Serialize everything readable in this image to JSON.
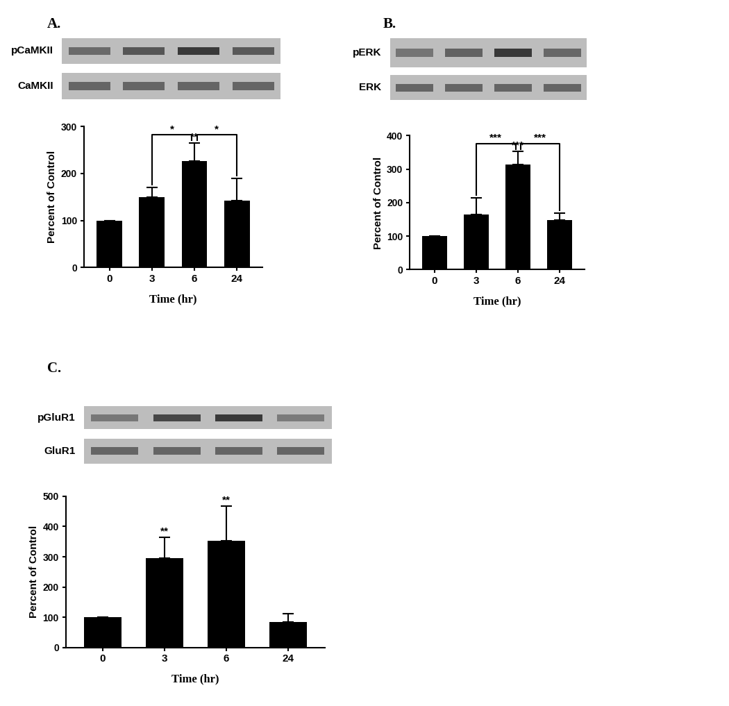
{
  "chart_data": [
    {
      "type": "bar",
      "panel_label": "A.",
      "blot_labels": [
        "pCaMKII",
        "CaMKII"
      ],
      "categories": [
        "0",
        "3",
        "6",
        "24"
      ],
      "values": [
        100,
        150,
        226,
        142
      ],
      "errors": [
        0,
        20,
        38,
        47
      ],
      "color": "#000000",
      "xlabel": "Time (hr)",
      "ylabel": "Percent of Control",
      "ylim": [
        0,
        300
      ],
      "yticks": [
        0,
        100,
        200,
        300
      ],
      "comparisons": [
        {
          "from": "3",
          "to": "6",
          "label": "*"
        },
        {
          "from": "6",
          "to": "24",
          "label": "*"
        }
      ],
      "marks": [
        {
          "category": "6",
          "label": "**"
        }
      ]
    },
    {
      "type": "bar",
      "panel_label": "B.",
      "blot_labels": [
        "pERK",
        "ERK"
      ],
      "categories": [
        "0",
        "3",
        "6",
        "24"
      ],
      "values": [
        100,
        165,
        314,
        149
      ],
      "errors": [
        0,
        50,
        38,
        20
      ],
      "color": "#000000",
      "xlabel": "Time (hr)",
      "ylabel": "Percent of Control",
      "ylim": [
        0,
        400
      ],
      "yticks": [
        0,
        100,
        200,
        300,
        400
      ],
      "comparisons": [
        {
          "from": "3",
          "to": "6",
          "label": "***"
        },
        {
          "from": "6",
          "to": "24",
          "label": "***"
        }
      ],
      "marks": [
        {
          "category": "6",
          "label": "***"
        }
      ]
    },
    {
      "type": "bar",
      "panel_label": "C.",
      "blot_labels": [
        "pGluR1",
        "GluR1"
      ],
      "categories": [
        "0",
        "3",
        "6",
        "24"
      ],
      "values": [
        100,
        296,
        352,
        84
      ],
      "errors": [
        0,
        68,
        115,
        28
      ],
      "color": "#000000",
      "xlabel": "Time (hr)",
      "ylabel": "Percent of Control",
      "ylim": [
        0,
        500
      ],
      "yticks": [
        0,
        100,
        200,
        300,
        400,
        500
      ],
      "comparisons": [],
      "marks": [
        {
          "category": "3",
          "label": "**"
        },
        {
          "category": "6",
          "label": "**"
        }
      ]
    }
  ]
}
